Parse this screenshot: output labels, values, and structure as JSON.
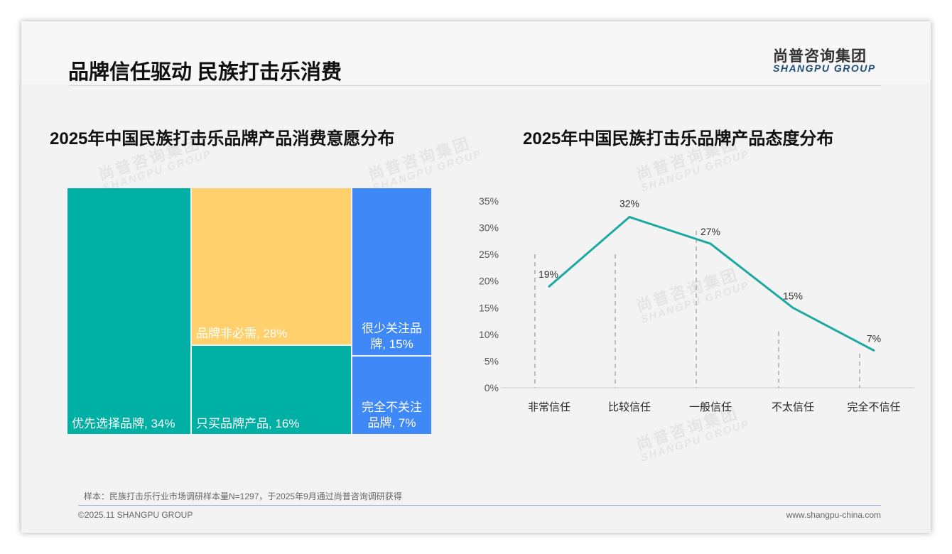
{
  "header": {
    "title": "品牌信任驱动 民族打击乐消费",
    "logo_cn": "尚普咨询集团",
    "logo_en": "SHANGPU GROUP"
  },
  "watermark": {
    "cn": "尚普咨询集团",
    "en": "SHANGPU GROUP"
  },
  "colors": {
    "teal": "#00b0a4",
    "yellow": "#ffd06b",
    "blue": "#3f88f8",
    "line": "#1aa9a0"
  },
  "chart_data": [
    {
      "type": "treemap",
      "title": "2025年中国民族打击乐品牌产品消费意愿分布",
      "items": [
        {
          "label": "优先选择品牌, 34%",
          "value": 34
        },
        {
          "label": "品牌非必需, 28%",
          "value": 28
        },
        {
          "label": "只买品牌产品, 16%",
          "value": 16
        },
        {
          "label": "很少关注品牌, 15%",
          "value": 15
        },
        {
          "label": "完全不关注品牌, 7%",
          "value": 7
        }
      ]
    },
    {
      "type": "line",
      "title": "2025年中国民族打击乐品牌产品态度分布",
      "categories": [
        "非常信任",
        "比较信任",
        "一般信任",
        "不太信任",
        "完全不信任"
      ],
      "values": [
        19,
        32,
        27,
        15,
        7
      ],
      "data_labels": [
        "19%",
        "32%",
        "27%",
        "15%",
        "7%"
      ],
      "ylim": [
        0,
        35
      ],
      "yticks": [
        "0%",
        "5%",
        "10%",
        "15%",
        "20%",
        "25%",
        "30%",
        "35%"
      ]
    }
  ],
  "footer": {
    "note": "样本：民族打击乐行业市场调研样本量N=1297，于2025年9月通过尚普咨询调研获得",
    "copyright": "©2025.11 SHANGPU GROUP",
    "website": "www.shangpu-china.com"
  }
}
